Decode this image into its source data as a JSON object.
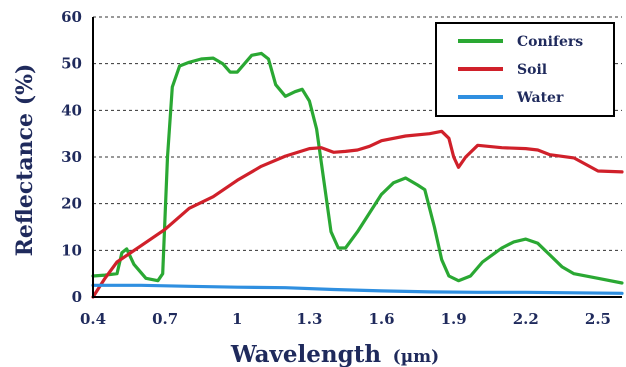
{
  "chart_data": {
    "type": "line",
    "xlabel": "Wavelength",
    "xlabel_unit": "(µm)",
    "ylabel": "Reflectance (%)",
    "xlim": [
      0.4,
      2.6
    ],
    "ylim": [
      0,
      60
    ],
    "x_ticks": [
      "0.4",
      "0.7",
      "1",
      "1.3",
      "1.6",
      "1.9",
      "2.2",
      "2.5"
    ],
    "x_tick_values": [
      0.4,
      0.7,
      1.0,
      1.3,
      1.6,
      1.9,
      2.2,
      2.5
    ],
    "y_ticks": [
      "0",
      "10",
      "20",
      "30",
      "40",
      "50",
      "60"
    ],
    "y_tick_values": [
      0,
      10,
      20,
      30,
      40,
      50,
      60
    ],
    "grid": "horizontal-dashed",
    "legend_position": "top-right",
    "series": [
      {
        "name": "Conifers",
        "color": "#2aa833",
        "points": [
          [
            0.4,
            4.5
          ],
          [
            0.45,
            4.7
          ],
          [
            0.5,
            5
          ],
          [
            0.52,
            9.5
          ],
          [
            0.54,
            10.3
          ],
          [
            0.57,
            7
          ],
          [
            0.62,
            4
          ],
          [
            0.67,
            3.5
          ],
          [
            0.69,
            5
          ],
          [
            0.71,
            30
          ],
          [
            0.73,
            45
          ],
          [
            0.76,
            49.5
          ],
          [
            0.8,
            50.3
          ],
          [
            0.85,
            51
          ],
          [
            0.9,
            51.2
          ],
          [
            0.94,
            50
          ],
          [
            0.97,
            48.2
          ],
          [
            1.0,
            48.2
          ],
          [
            1.03,
            50
          ],
          [
            1.06,
            51.8
          ],
          [
            1.1,
            52.2
          ],
          [
            1.13,
            51
          ],
          [
            1.16,
            45.5
          ],
          [
            1.2,
            43
          ],
          [
            1.24,
            44
          ],
          [
            1.27,
            44.5
          ],
          [
            1.3,
            42
          ],
          [
            1.33,
            36
          ],
          [
            1.36,
            25
          ],
          [
            1.39,
            14
          ],
          [
            1.42,
            10.5
          ],
          [
            1.45,
            10.5
          ],
          [
            1.5,
            14
          ],
          [
            1.55,
            18
          ],
          [
            1.6,
            22
          ],
          [
            1.65,
            24.5
          ],
          [
            1.7,
            25.5
          ],
          [
            1.75,
            24
          ],
          [
            1.78,
            23
          ],
          [
            1.82,
            15
          ],
          [
            1.85,
            8
          ],
          [
            1.88,
            4.5
          ],
          [
            1.92,
            3.5
          ],
          [
            1.97,
            4.5
          ],
          [
            2.02,
            7.5
          ],
          [
            2.1,
            10.5
          ],
          [
            2.15,
            11.8
          ],
          [
            2.2,
            12.4
          ],
          [
            2.25,
            11.5
          ],
          [
            2.3,
            9
          ],
          [
            2.35,
            6.5
          ],
          [
            2.4,
            5
          ],
          [
            2.5,
            4
          ],
          [
            2.6,
            3
          ]
        ]
      },
      {
        "name": "Soil",
        "color": "#d0202a",
        "points": [
          [
            0.4,
            0
          ],
          [
            0.45,
            4
          ],
          [
            0.5,
            7.5
          ],
          [
            0.6,
            11
          ],
          [
            0.7,
            14.5
          ],
          [
            0.8,
            19
          ],
          [
            0.9,
            21.5
          ],
          [
            1.0,
            25
          ],
          [
            1.1,
            28
          ],
          [
            1.2,
            30.2
          ],
          [
            1.3,
            31.8
          ],
          [
            1.35,
            32
          ],
          [
            1.4,
            31
          ],
          [
            1.45,
            31.2
          ],
          [
            1.5,
            31.5
          ],
          [
            1.55,
            32.3
          ],
          [
            1.6,
            33.5
          ],
          [
            1.7,
            34.5
          ],
          [
            1.8,
            35
          ],
          [
            1.85,
            35.5
          ],
          [
            1.88,
            34
          ],
          [
            1.9,
            30
          ],
          [
            1.92,
            27.8
          ],
          [
            1.95,
            30
          ],
          [
            2.0,
            32.5
          ],
          [
            2.1,
            32
          ],
          [
            2.2,
            31.8
          ],
          [
            2.25,
            31.5
          ],
          [
            2.3,
            30.5
          ],
          [
            2.4,
            29.8
          ],
          [
            2.5,
            27
          ],
          [
            2.6,
            26.8
          ]
        ]
      },
      {
        "name": "Water",
        "color": "#2f8fe0",
        "points": [
          [
            0.4,
            2.5
          ],
          [
            0.6,
            2.5
          ],
          [
            0.8,
            2.3
          ],
          [
            1.0,
            2.1
          ],
          [
            1.2,
            2
          ],
          [
            1.4,
            1.6
          ],
          [
            1.6,
            1.3
          ],
          [
            1.8,
            1.1
          ],
          [
            2.0,
            1
          ],
          [
            2.2,
            1
          ],
          [
            2.4,
            0.9
          ],
          [
            2.6,
            0.8
          ]
        ]
      }
    ]
  }
}
